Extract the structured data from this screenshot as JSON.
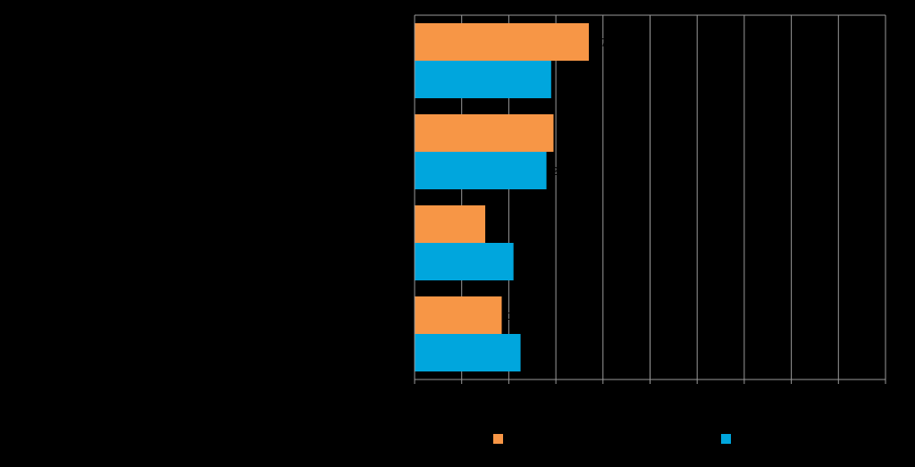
{
  "chart_data": {
    "type": "bar",
    "orientation": "horizontal",
    "title": "",
    "xlabel": "",
    "ylabel": "",
    "categories": [
      "",
      "",
      "",
      ""
    ],
    "series": [
      {
        "values": [
          37,
          29.5,
          15,
          18.5
        ],
        "color": "#F79646"
      },
      {
        "values": [
          29,
          28,
          21,
          22.5
        ],
        "color": "#00A6DD"
      }
    ],
    "xlim": [
      0,
      100
    ],
    "x_ticks": [
      0,
      10,
      20,
      30,
      40,
      50,
      60,
      70,
      80,
      90,
      100
    ],
    "grid": true,
    "legend_position": "bottom"
  }
}
